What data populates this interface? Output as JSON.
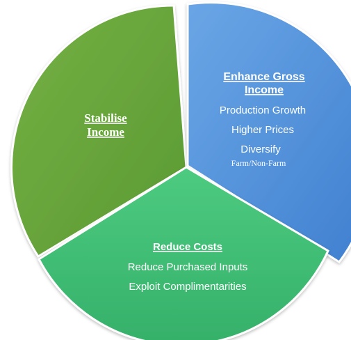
{
  "segments": [
    {
      "id": "stabilise",
      "title_lines": [
        "Stabilise",
        "Income"
      ],
      "items": [],
      "color": "#6aa83c"
    },
    {
      "id": "enhance",
      "title_lines": [
        "Enhance Gross",
        "Income"
      ],
      "items": [
        "Production Growth",
        "Higher Prices",
        "Diversify",
        "Farm/Non-Farm"
      ],
      "color": "#4f8fd8"
    },
    {
      "id": "reduce",
      "title_lines": [
        "Reduce Costs"
      ],
      "items": [
        "Reduce Purchased Inputs",
        "Exploit Complimentarities"
      ],
      "color": "#3fbd74"
    }
  ]
}
